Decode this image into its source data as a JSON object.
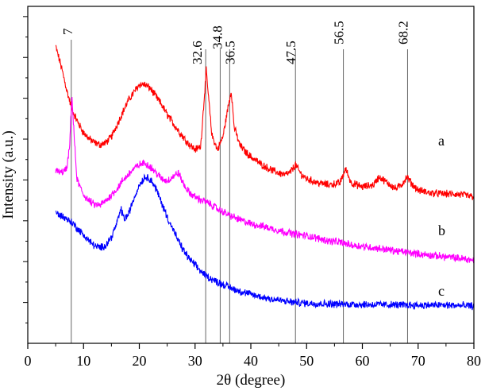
{
  "chart_data": {
    "type": "line",
    "xlabel": "2θ (degree)",
    "ylabel": "Intensity (a.u.)",
    "xlim": [
      0,
      80
    ],
    "x_ticks": [
      "0",
      "10",
      "20",
      "30",
      "40",
      "50",
      "60",
      "70",
      "80"
    ],
    "y_ticks": "unlabeled",
    "grid": false,
    "peak_markers": [
      {
        "x": 7.8,
        "label": "7"
      },
      {
        "x": 31.9,
        "label": "32.6"
      },
      {
        "x": 34.5,
        "label": "34.8"
      },
      {
        "x": 36.2,
        "label": "36.5"
      },
      {
        "x": 48.0,
        "label": "47.5"
      },
      {
        "x": 56.6,
        "label": "56.5"
      },
      {
        "x": 68.1,
        "label": "68.2"
      }
    ],
    "series": [
      {
        "name": "a",
        "color": "#ff0000",
        "points": [
          [
            5,
            7.4
          ],
          [
            6,
            6.9
          ],
          [
            7,
            6.3
          ],
          [
            8,
            5.8
          ],
          [
            9,
            5.5
          ],
          [
            10,
            5.25
          ],
          [
            11,
            5.1
          ],
          [
            12,
            5.0
          ],
          [
            13,
            4.95
          ],
          [
            14,
            5.0
          ],
          [
            15,
            5.15
          ],
          [
            16,
            5.45
          ],
          [
            17,
            5.75
          ],
          [
            18,
            6.05
          ],
          [
            19,
            6.25
          ],
          [
            20,
            6.45
          ],
          [
            21,
            6.45
          ],
          [
            22,
            6.35
          ],
          [
            23,
            6.15
          ],
          [
            24,
            5.95
          ],
          [
            25,
            5.7
          ],
          [
            26,
            5.5
          ],
          [
            27,
            5.3
          ],
          [
            28,
            5.12
          ],
          [
            29,
            4.95
          ],
          [
            30,
            4.83
          ],
          [
            31,
            4.9
          ],
          [
            32,
            6.8
          ],
          [
            33,
            5.2
          ],
          [
            34,
            4.82
          ],
          [
            35,
            5.15
          ],
          [
            36,
            5.95
          ],
          [
            36.5,
            6.3
          ],
          [
            37,
            5.4
          ],
          [
            38,
            4.95
          ],
          [
            39,
            4.78
          ],
          [
            40,
            4.65
          ],
          [
            42,
            4.45
          ],
          [
            44,
            4.3
          ],
          [
            46,
            4.2
          ],
          [
            47,
            4.25
          ],
          [
            48,
            4.45
          ],
          [
            49,
            4.22
          ],
          [
            50,
            4.1
          ],
          [
            52,
            4.0
          ],
          [
            54,
            3.95
          ],
          [
            56,
            4.0
          ],
          [
            57,
            4.35
          ],
          [
            58,
            4.0
          ],
          [
            60,
            3.9
          ],
          [
            62,
            3.95
          ],
          [
            63,
            4.15
          ],
          [
            64,
            4.05
          ],
          [
            66,
            3.85
          ],
          [
            67,
            3.95
          ],
          [
            68,
            4.15
          ],
          [
            69,
            3.95
          ],
          [
            70,
            3.82
          ],
          [
            72,
            3.75
          ],
          [
            74,
            3.73
          ],
          [
            76,
            3.72
          ],
          [
            78,
            3.7
          ],
          [
            80,
            3.65
          ]
        ]
      },
      {
        "name": "b",
        "color": "#ff00ff",
        "points": [
          [
            5,
            4.3
          ],
          [
            6,
            4.25
          ],
          [
            7,
            4.35
          ],
          [
            7.5,
            4.9
          ],
          [
            7.9,
            6.2
          ],
          [
            8.3,
            5.2
          ],
          [
            8.8,
            4.1
          ],
          [
            9.5,
            3.85
          ],
          [
            10,
            3.7
          ],
          [
            11,
            3.55
          ],
          [
            12,
            3.45
          ],
          [
            13,
            3.45
          ],
          [
            14,
            3.55
          ],
          [
            15,
            3.7
          ],
          [
            16,
            3.85
          ],
          [
            17,
            4.05
          ],
          [
            18,
            4.2
          ],
          [
            19,
            4.35
          ],
          [
            20,
            4.45
          ],
          [
            21,
            4.5
          ],
          [
            22,
            4.4
          ],
          [
            23,
            4.25
          ],
          [
            24,
            4.1
          ],
          [
            25,
            4.05
          ],
          [
            26,
            4.15
          ],
          [
            27,
            4.25
          ],
          [
            28,
            3.95
          ],
          [
            29,
            3.75
          ],
          [
            30,
            3.65
          ],
          [
            31,
            3.58
          ],
          [
            32,
            3.52
          ],
          [
            33,
            3.45
          ],
          [
            34,
            3.35
          ],
          [
            35,
            3.28
          ],
          [
            36,
            3.2
          ],
          [
            38,
            3.08
          ],
          [
            40,
            2.98
          ],
          [
            42,
            2.92
          ],
          [
            44,
            2.85
          ],
          [
            46,
            2.78
          ],
          [
            48,
            2.72
          ],
          [
            50,
            2.68
          ],
          [
            52,
            2.62
          ],
          [
            54,
            2.55
          ],
          [
            56,
            2.52
          ],
          [
            58,
            2.45
          ],
          [
            60,
            2.42
          ],
          [
            62,
            2.38
          ],
          [
            64,
            2.35
          ],
          [
            66,
            2.3
          ],
          [
            68,
            2.27
          ],
          [
            70,
            2.23
          ],
          [
            72,
            2.2
          ],
          [
            74,
            2.17
          ],
          [
            76,
            2.14
          ],
          [
            78,
            2.11
          ],
          [
            80,
            2.07
          ]
        ]
      },
      {
        "name": "c",
        "color": "#0000ff",
        "points": [
          [
            5,
            3.25
          ],
          [
            6,
            3.18
          ],
          [
            7,
            3.1
          ],
          [
            8,
            3.0
          ],
          [
            9,
            2.85
          ],
          [
            10,
            2.7
          ],
          [
            11,
            2.55
          ],
          [
            12,
            2.43
          ],
          [
            13,
            2.38
          ],
          [
            14,
            2.45
          ],
          [
            15,
            2.65
          ],
          [
            16,
            3.0
          ],
          [
            16.7,
            3.35
          ],
          [
            17.3,
            3.1
          ],
          [
            18,
            3.2
          ],
          [
            19,
            3.6
          ],
          [
            20,
            3.95
          ],
          [
            21,
            4.15
          ],
          [
            22,
            4.1
          ],
          [
            23,
            3.85
          ],
          [
            24,
            3.5
          ],
          [
            25,
            3.15
          ],
          [
            26,
            2.85
          ],
          [
            27,
            2.55
          ],
          [
            28,
            2.3
          ],
          [
            29,
            2.1
          ],
          [
            30,
            1.95
          ],
          [
            31,
            1.8
          ],
          [
            32,
            1.68
          ],
          [
            33,
            1.6
          ],
          [
            34,
            1.53
          ],
          [
            35,
            1.47
          ],
          [
            36,
            1.4
          ],
          [
            38,
            1.3
          ],
          [
            40,
            1.22
          ],
          [
            42,
            1.15
          ],
          [
            44,
            1.1
          ],
          [
            46,
            1.05
          ],
          [
            48,
            1.02
          ],
          [
            50,
            1.0
          ],
          [
            55,
            0.98
          ],
          [
            60,
            0.97
          ],
          [
            65,
            0.96
          ],
          [
            70,
            0.95
          ],
          [
            75,
            0.95
          ],
          [
            80,
            0.93
          ]
        ]
      }
    ]
  }
}
